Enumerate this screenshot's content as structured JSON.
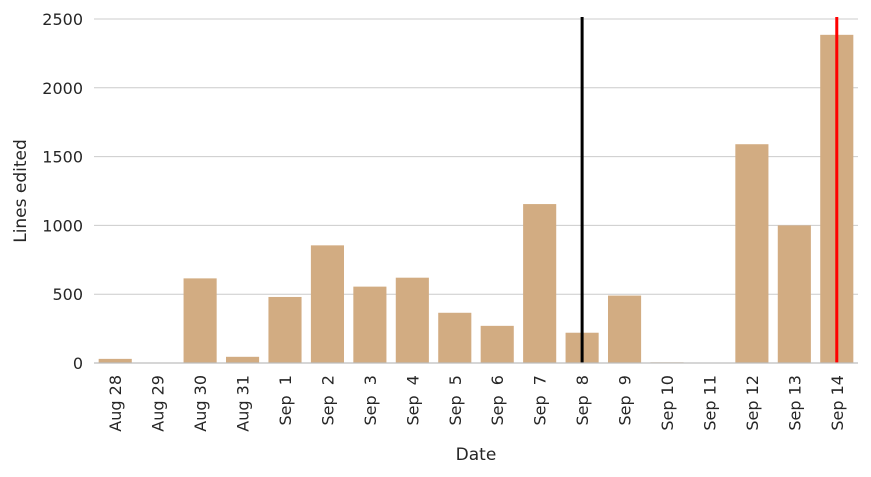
{
  "chart_data": {
    "type": "bar",
    "xlabel": "Date",
    "ylabel": "Lines edited",
    "ylim": [
      0,
      2500
    ],
    "yticks": [
      "0",
      "500",
      "1000",
      "1500",
      "2000",
      "2500"
    ],
    "categories": [
      "Aug 28",
      "Aug 29",
      "Aug 30",
      "Aug 31",
      "Sep  1",
      "Sep  2",
      "Sep  3",
      "Sep  4",
      "Sep  5",
      "Sep  6",
      "Sep  7",
      "Sep  8",
      "Sep  9",
      "Sep 10",
      "Sep 11",
      "Sep 12",
      "Sep 13",
      "Sep 14"
    ],
    "values": [
      30,
      2,
      615,
      45,
      480,
      855,
      555,
      620,
      365,
      270,
      1155,
      220,
      490,
      5,
      0,
      1590,
      1000,
      2385
    ],
    "bar_color": "#d2ac82",
    "grid": true,
    "vertical_lines": [
      {
        "category": "Sep  8",
        "color": "#000000"
      },
      {
        "category": "Sep 14",
        "color": "#ff0000"
      }
    ]
  }
}
